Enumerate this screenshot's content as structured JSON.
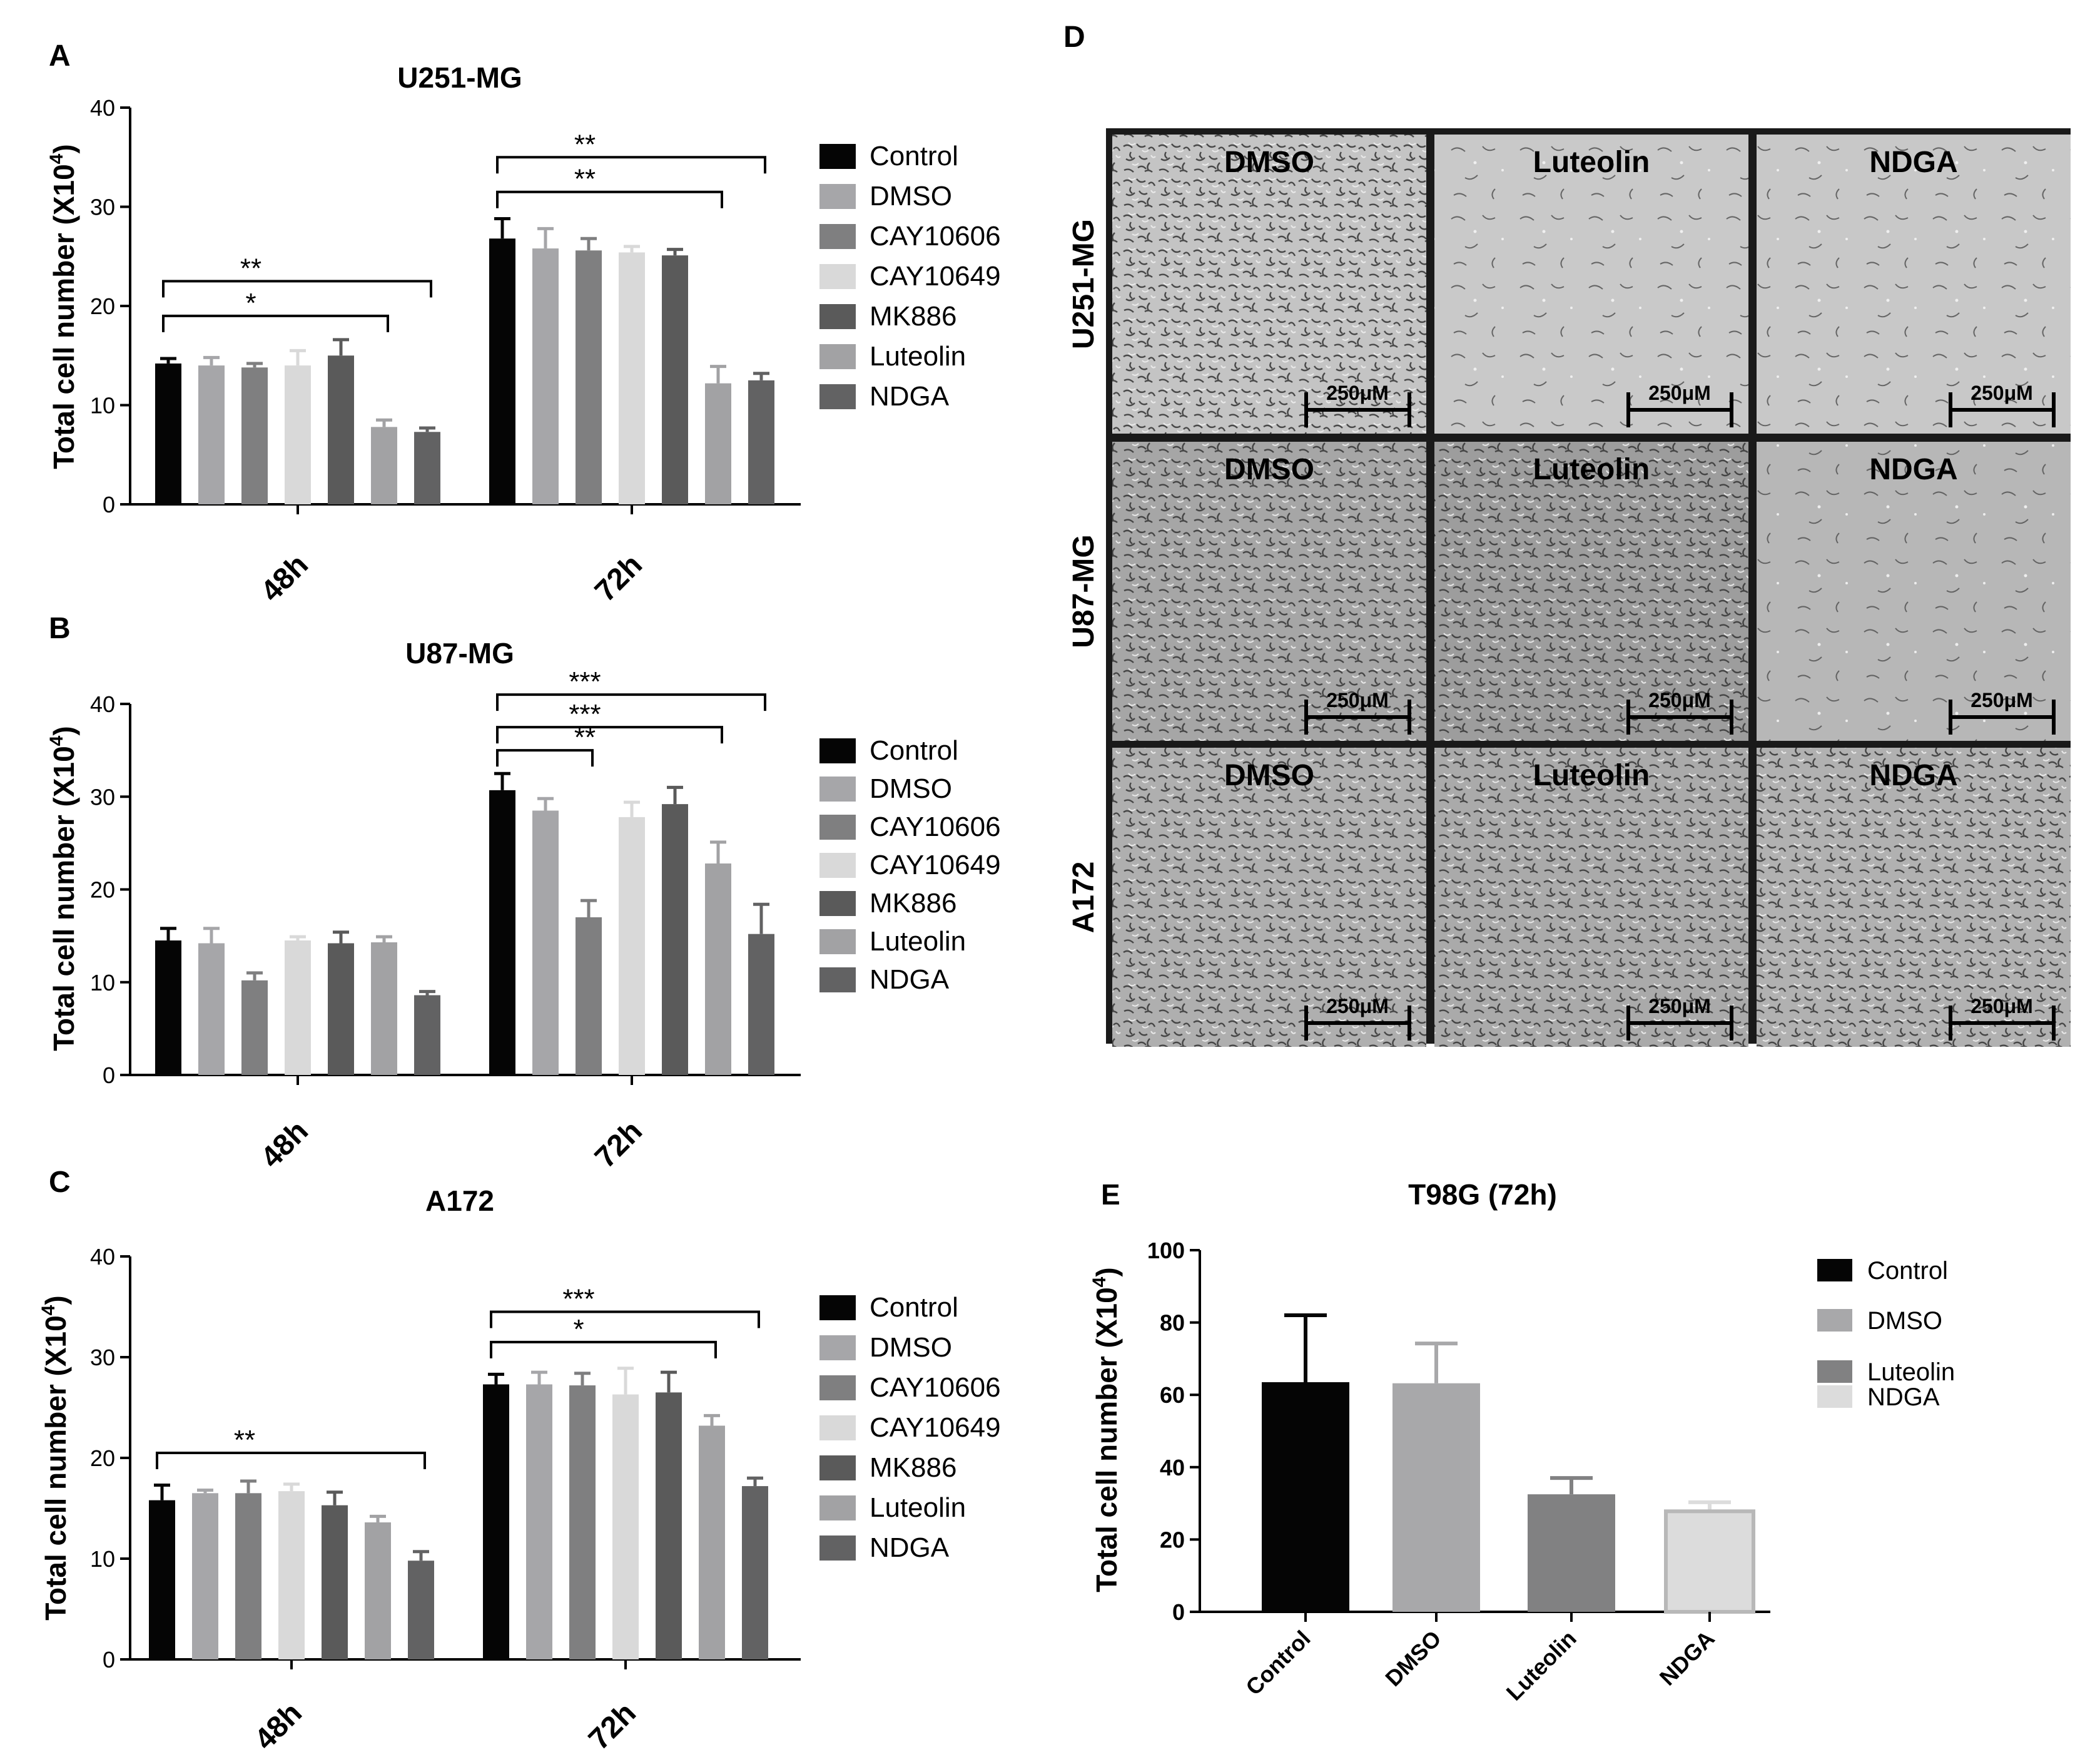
{
  "figure": {
    "colors": {
      "Control": "#050505",
      "DMSO": "#a6a6a9",
      "CAY10606": "#7f7f80",
      "CAY10649": "#d9d9d9",
      "MK886": "#5a5a5a",
      "Luteolin": "#a2a2a4",
      "NDGA": "#626263"
    }
  },
  "chart_data": [
    {
      "panel": "A",
      "type": "bar",
      "title": "U251-MG",
      "ylabel": "Total cell number (X10",
      "ylabel_sup": "4",
      "ylabel_close": ")",
      "ylim": [
        0,
        40
      ],
      "yticks": [
        0,
        10,
        20,
        30,
        40
      ],
      "categories": [
        "48h",
        "72h"
      ],
      "series": [
        {
          "name": "Control",
          "values": [
            14.2,
            26.8
          ],
          "errors": [
            0.5,
            2.0
          ]
        },
        {
          "name": "DMSO",
          "values": [
            14.0,
            25.8
          ],
          "errors": [
            0.8,
            2.0
          ]
        },
        {
          "name": "CAY10606",
          "values": [
            13.8,
            25.6
          ],
          "errors": [
            0.4,
            1.2
          ]
        },
        {
          "name": "CAY10649",
          "values": [
            14.0,
            25.4
          ],
          "errors": [
            1.5,
            0.6
          ]
        },
        {
          "name": "MK886",
          "values": [
            15.0,
            25.1
          ],
          "errors": [
            1.6,
            0.6
          ]
        },
        {
          "name": "Luteolin",
          "values": [
            7.8,
            12.2
          ],
          "errors": [
            0.7,
            1.7
          ]
        },
        {
          "name": "NDGA",
          "values": [
            7.3,
            12.5
          ],
          "errors": [
            0.4,
            0.7
          ]
        }
      ],
      "significance": [
        {
          "label": "**",
          "group": 0,
          "from": 0,
          "to": 6,
          "level": 22.5
        },
        {
          "label": "*",
          "group": 0,
          "from": 0,
          "to": 5,
          "level": 19.0
        },
        {
          "label": "**",
          "group": 1,
          "from": 0,
          "to": 6,
          "level": 35.0
        },
        {
          "label": "**",
          "group": 1,
          "from": 0,
          "to": 5,
          "level": 31.5
        }
      ]
    },
    {
      "panel": "B",
      "type": "bar",
      "title": "U87-MG",
      "ylabel": "Total cell number (X10",
      "ylabel_sup": "4",
      "ylabel_close": ")",
      "ylim": [
        0,
        40
      ],
      "yticks": [
        0,
        10,
        20,
        30,
        40
      ],
      "categories": [
        "48h",
        "72h"
      ],
      "series": [
        {
          "name": "Control",
          "values": [
            14.5,
            30.7
          ],
          "errors": [
            1.3,
            1.8
          ]
        },
        {
          "name": "DMSO",
          "values": [
            14.2,
            28.5
          ],
          "errors": [
            1.6,
            1.3
          ]
        },
        {
          "name": "CAY10606",
          "values": [
            10.2,
            17.0
          ],
          "errors": [
            0.8,
            1.8
          ]
        },
        {
          "name": "CAY10649",
          "values": [
            14.5,
            27.8
          ],
          "errors": [
            0.4,
            1.6
          ]
        },
        {
          "name": "MK886",
          "values": [
            14.2,
            29.2
          ],
          "errors": [
            1.2,
            1.8
          ]
        },
        {
          "name": "Luteolin",
          "values": [
            14.3,
            22.8
          ],
          "errors": [
            0.6,
            2.3
          ]
        },
        {
          "name": "NDGA",
          "values": [
            8.6,
            15.2
          ],
          "errors": [
            0.4,
            3.2
          ]
        }
      ],
      "significance": [
        {
          "label": "***",
          "group": 1,
          "from": 0,
          "to": 6,
          "level": 41.0
        },
        {
          "label": "***",
          "group": 1,
          "from": 0,
          "to": 5,
          "level": 37.5
        },
        {
          "label": "**",
          "group": 1,
          "from": 0,
          "to": 2,
          "level": 35.0
        }
      ]
    },
    {
      "panel": "C",
      "type": "bar",
      "title": "A172",
      "ylabel": "Total cell number (X10",
      "ylabel_sup": "4",
      "ylabel_close": ")",
      "ylim": [
        0,
        40
      ],
      "yticks": [
        0,
        10,
        20,
        30,
        40
      ],
      "categories": [
        "48h",
        "72h"
      ],
      "series": [
        {
          "name": "Control",
          "values": [
            15.8,
            27.3
          ],
          "errors": [
            1.5,
            1.0
          ]
        },
        {
          "name": "DMSO",
          "values": [
            16.5,
            27.3
          ],
          "errors": [
            0.3,
            1.2
          ]
        },
        {
          "name": "CAY10606",
          "values": [
            16.5,
            27.2
          ],
          "errors": [
            1.2,
            1.2
          ]
        },
        {
          "name": "CAY10649",
          "values": [
            16.7,
            26.3
          ],
          "errors": [
            0.7,
            2.6
          ]
        },
        {
          "name": "MK886",
          "values": [
            15.3,
            26.5
          ],
          "errors": [
            1.3,
            2.0
          ]
        },
        {
          "name": "Luteolin",
          "values": [
            13.6,
            23.2
          ],
          "errors": [
            0.6,
            1.0
          ]
        },
        {
          "name": "NDGA",
          "values": [
            9.8,
            17.2
          ],
          "errors": [
            0.9,
            0.8
          ]
        }
      ],
      "significance": [
        {
          "label": "**",
          "group": 0,
          "from": 0,
          "to": 6,
          "level": 20.5
        },
        {
          "label": "***",
          "group": 1,
          "from": 0,
          "to": 6,
          "level": 34.5
        },
        {
          "label": "*",
          "group": 1,
          "from": 0,
          "to": 5,
          "level": 31.5
        }
      ]
    },
    {
      "panel": "E",
      "type": "bar",
      "title": "T98G (72h)",
      "ylabel": "Total cell number (X10",
      "ylabel_sup": "4",
      "ylabel_close": ")",
      "ylim": [
        0,
        100
      ],
      "yticks": [
        0,
        20,
        40,
        60,
        80,
        100
      ],
      "categories": [
        "Control",
        "DMSO",
        "Luteolin",
        "NDGA"
      ],
      "values": [
        63.5,
        63.2,
        32.5,
        27.8
      ],
      "errors": [
        18.5,
        11.0,
        4.5,
        2.5
      ],
      "bar_colors": [
        "#050505",
        "#a8a8aa",
        "#818182",
        "#dcdcdc"
      ],
      "legend": [
        "Control",
        "DMSO",
        "Luteolin",
        "NDGA"
      ]
    }
  ],
  "panel_d": {
    "label": "D",
    "rows": [
      "U251-MG",
      "U87-MG",
      "A172"
    ],
    "columns": [
      "DMSO",
      "Luteolin",
      "NDGA"
    ],
    "scale_bar": "250μM"
  }
}
